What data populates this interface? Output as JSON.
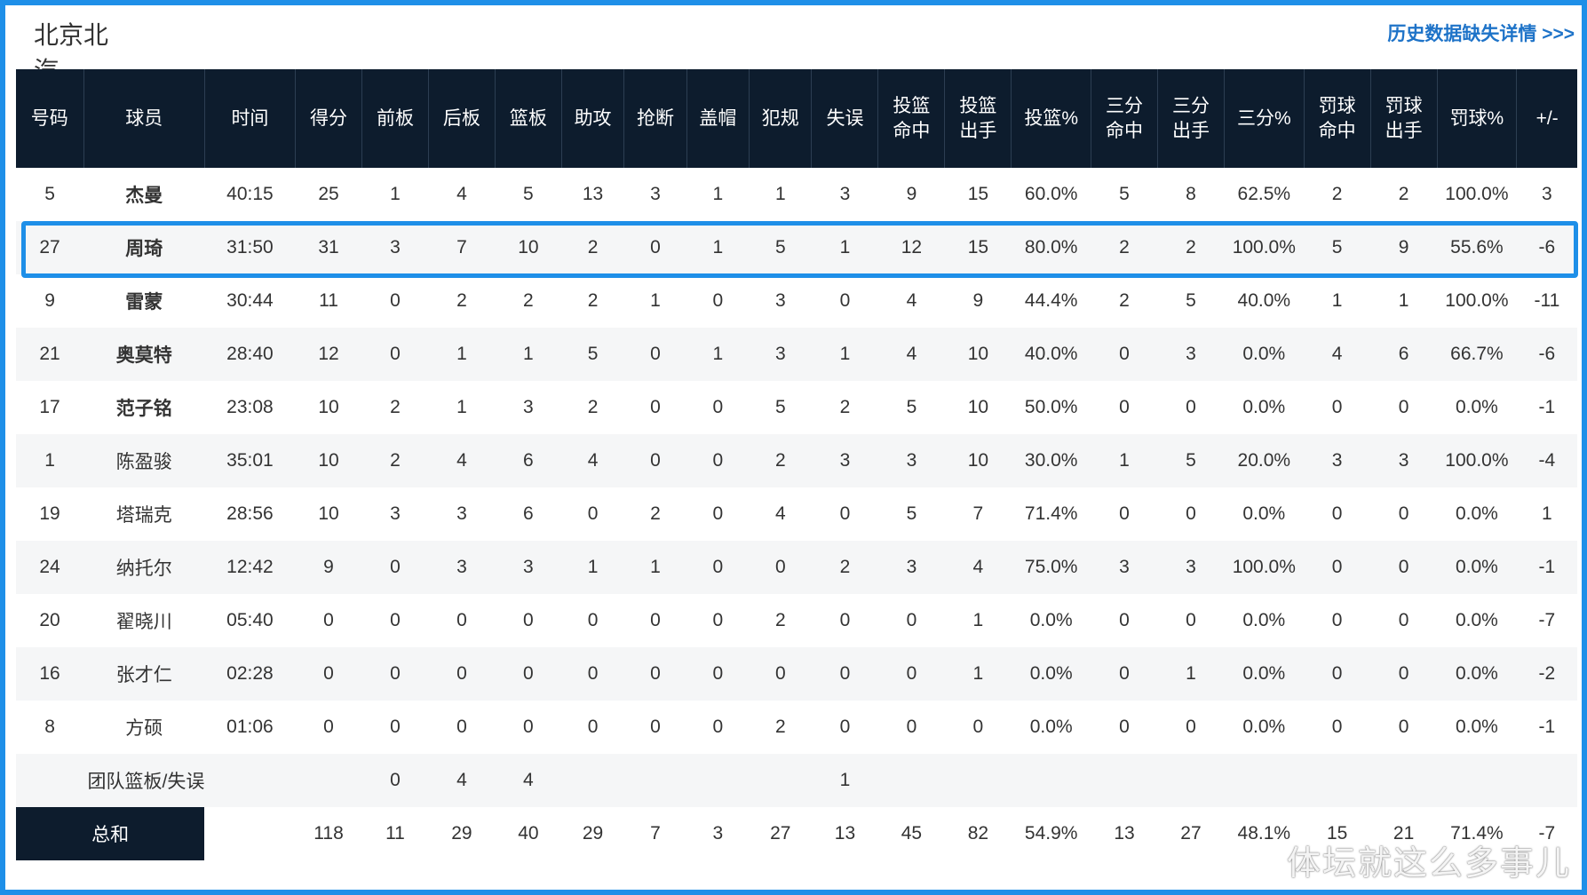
{
  "header": {
    "team_tab": "北京北汽",
    "history_link": "历史数据缺失详情 >>>"
  },
  "columns": [
    "号码",
    "球员",
    "时间",
    "得分",
    "前板",
    "后板",
    "篮板",
    "助攻",
    "抢断",
    "盖帽",
    "犯规",
    "失误",
    "投篮\n命中",
    "投篮\n出手",
    "投篮%",
    "三分\n命中",
    "三分\n出手",
    "三分%",
    "罚球\n命中",
    "罚球\n出手",
    "罚球%",
    "+/-"
  ],
  "players": [
    {
      "no": "5",
      "name": "杰曼",
      "starter": true,
      "stats": [
        "40:15",
        "25",
        "1",
        "4",
        "5",
        "13",
        "3",
        "1",
        "1",
        "3",
        "9",
        "15",
        "60.0%",
        "5",
        "8",
        "62.5%",
        "2",
        "2",
        "100.0%",
        "3"
      ]
    },
    {
      "no": "27",
      "name": "周琦",
      "starter": true,
      "stats": [
        "31:50",
        "31",
        "3",
        "7",
        "10",
        "2",
        "0",
        "1",
        "5",
        "1",
        "12",
        "15",
        "80.0%",
        "2",
        "2",
        "100.0%",
        "5",
        "9",
        "55.6%",
        "-6"
      ]
    },
    {
      "no": "9",
      "name": "雷蒙",
      "starter": true,
      "stats": [
        "30:44",
        "11",
        "0",
        "2",
        "2",
        "2",
        "1",
        "0",
        "3",
        "0",
        "4",
        "9",
        "44.4%",
        "2",
        "5",
        "40.0%",
        "1",
        "1",
        "100.0%",
        "-11"
      ]
    },
    {
      "no": "21",
      "name": "奥莫特",
      "starter": true,
      "stats": [
        "28:40",
        "12",
        "0",
        "1",
        "1",
        "5",
        "0",
        "1",
        "3",
        "1",
        "4",
        "10",
        "40.0%",
        "0",
        "3",
        "0.0%",
        "4",
        "6",
        "66.7%",
        "-6"
      ]
    },
    {
      "no": "17",
      "name": "范子铭",
      "starter": true,
      "stats": [
        "23:08",
        "10",
        "2",
        "1",
        "3",
        "2",
        "0",
        "0",
        "5",
        "2",
        "5",
        "10",
        "50.0%",
        "0",
        "0",
        "0.0%",
        "0",
        "0",
        "0.0%",
        "-1"
      ]
    },
    {
      "no": "1",
      "name": "陈盈骏",
      "starter": false,
      "stats": [
        "35:01",
        "10",
        "2",
        "4",
        "6",
        "4",
        "0",
        "0",
        "2",
        "3",
        "3",
        "10",
        "30.0%",
        "1",
        "5",
        "20.0%",
        "3",
        "3",
        "100.0%",
        "-4"
      ]
    },
    {
      "no": "19",
      "name": "塔瑞克",
      "starter": false,
      "stats": [
        "28:56",
        "10",
        "3",
        "3",
        "6",
        "0",
        "2",
        "0",
        "4",
        "0",
        "5",
        "7",
        "71.4%",
        "0",
        "0",
        "0.0%",
        "0",
        "0",
        "0.0%",
        "1"
      ]
    },
    {
      "no": "24",
      "name": "纳托尔",
      "starter": false,
      "stats": [
        "12:42",
        "9",
        "0",
        "3",
        "3",
        "1",
        "1",
        "0",
        "0",
        "2",
        "3",
        "4",
        "75.0%",
        "3",
        "3",
        "100.0%",
        "0",
        "0",
        "0.0%",
        "-1"
      ]
    },
    {
      "no": "20",
      "name": "翟晓川",
      "starter": false,
      "stats": [
        "05:40",
        "0",
        "0",
        "0",
        "0",
        "0",
        "0",
        "0",
        "2",
        "0",
        "0",
        "1",
        "0.0%",
        "0",
        "0",
        "0.0%",
        "0",
        "0",
        "0.0%",
        "-7"
      ]
    },
    {
      "no": "16",
      "name": "张才仁",
      "starter": false,
      "stats": [
        "02:28",
        "0",
        "0",
        "0",
        "0",
        "0",
        "0",
        "0",
        "0",
        "0",
        "0",
        "1",
        "0.0%",
        "0",
        "1",
        "0.0%",
        "0",
        "0",
        "0.0%",
        "-2"
      ]
    },
    {
      "no": "8",
      "name": "方硕",
      "starter": false,
      "stats": [
        "01:06",
        "0",
        "0",
        "0",
        "0",
        "0",
        "0",
        "0",
        "2",
        "0",
        "0",
        "0",
        "0.0%",
        "0",
        "0",
        "0.0%",
        "0",
        "0",
        "0.0%",
        "-1"
      ]
    }
  ],
  "team_row": {
    "label": "团队篮板/失误",
    "stats": [
      "",
      "",
      "0",
      "4",
      "4",
      "",
      "",
      "",
      "",
      "1",
      "",
      "",
      "",
      "",
      "",
      "",
      "",
      "",
      "",
      ""
    ]
  },
  "total_row": {
    "label": "总和",
    "stats": [
      "",
      "118",
      "11",
      "29",
      "40",
      "29",
      "7",
      "3",
      "27",
      "13",
      "45",
      "82",
      "54.9%",
      "13",
      "27",
      "48.1%",
      "15",
      "21",
      "71.4%",
      "-7"
    ]
  },
  "watermark": "体坛就这么多事儿",
  "colors": {
    "header_bg": "#0d1c2d",
    "accent": "#1e8fe8",
    "link": "#1e73c8"
  }
}
